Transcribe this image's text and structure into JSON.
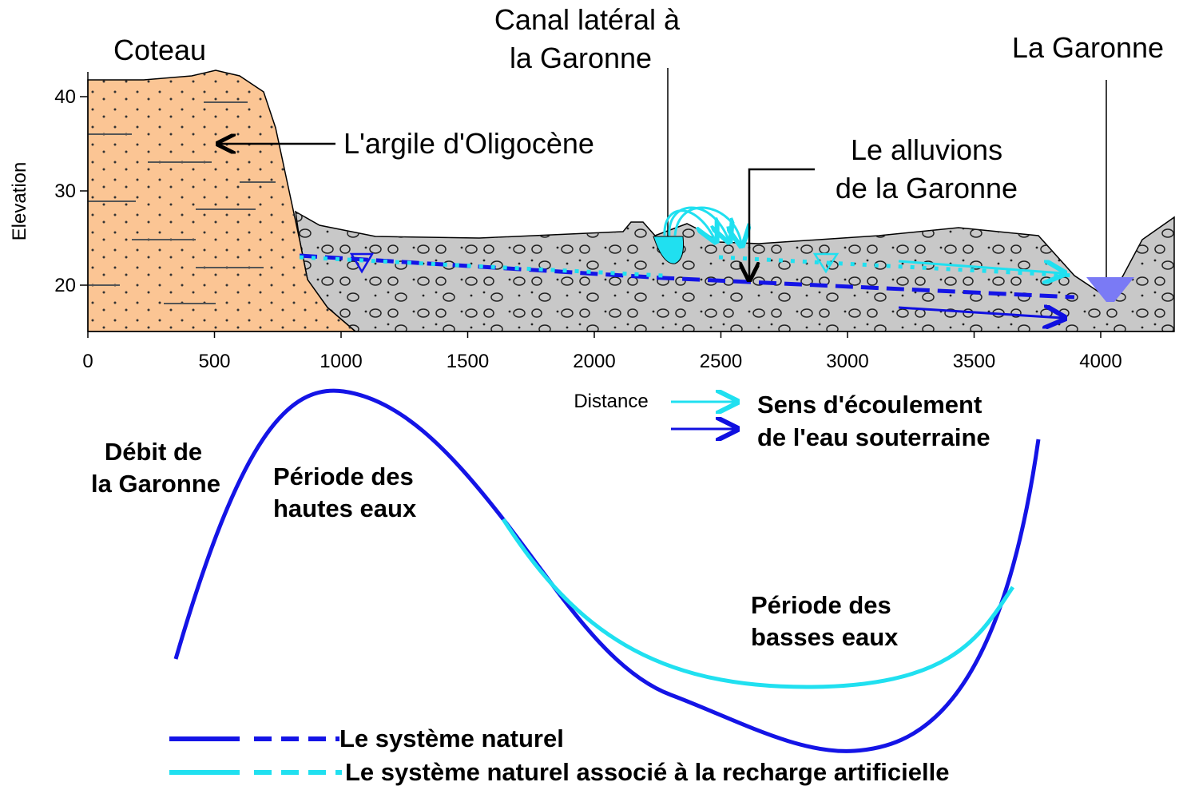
{
  "axis": {
    "y_label": "Elevation",
    "x_label": "Distance",
    "xticks": [
      0,
      500,
      1000,
      1500,
      2000,
      2500,
      3000,
      3500,
      4000
    ],
    "yticks": [
      20,
      30,
      40
    ]
  },
  "labels": {
    "coteau": "Coteau",
    "canal": [
      "Canal latéral à",
      "la Garonne"
    ],
    "garonne": "La Garonne",
    "argile": "L'argile d'Oligocène",
    "alluvions": [
      "Le alluvions",
      "de la Garonne"
    ]
  },
  "flow_legend": [
    "Sens d'écoulement",
    "de l'eau souterraine"
  ],
  "hydrograph": {
    "title": [
      "Débit de",
      "la Garonne"
    ],
    "high": [
      "Période des",
      "hautes eaux"
    ],
    "low": [
      "Période des",
      "basses eaux"
    ]
  },
  "legend": [
    "Le système naturel",
    "Le système naturel associé à la recharge artificielle"
  ]
}
